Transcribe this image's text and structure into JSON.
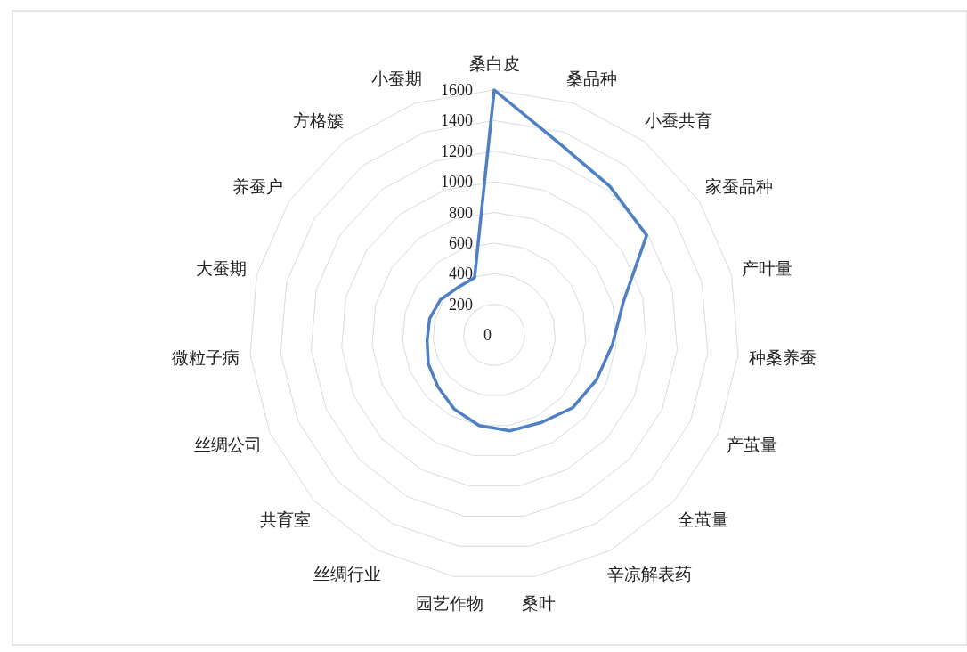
{
  "chart_data": {
    "type": "radar",
    "categories": [
      "桑白皮",
      "桑品种",
      "小蚕共育",
      "家蚕品种",
      "产叶量",
      "种桑养蚕",
      "产茧量",
      "全茧量",
      "辛凉解表药",
      "桑叶",
      "园艺作物",
      "丝绸行业",
      "共育室",
      "丝绸公司",
      "微粒子病",
      "大蚕期",
      "养蚕户",
      "方格簇",
      "小蚕期"
    ],
    "series": [
      {
        "color": "#4f7fc4",
        "values": [
          1600,
          1320,
          1230,
          1190,
          870,
          775,
          730,
          700,
          650,
          635,
          600,
          550,
          500,
          470,
          440,
          435,
          420,
          390,
          395
        ]
      }
    ],
    "ylim": [
      0,
      1600
    ],
    "yticks": [
      0,
      200,
      400,
      600,
      800,
      1000,
      1200,
      1400,
      1600
    ],
    "grid": true
  }
}
